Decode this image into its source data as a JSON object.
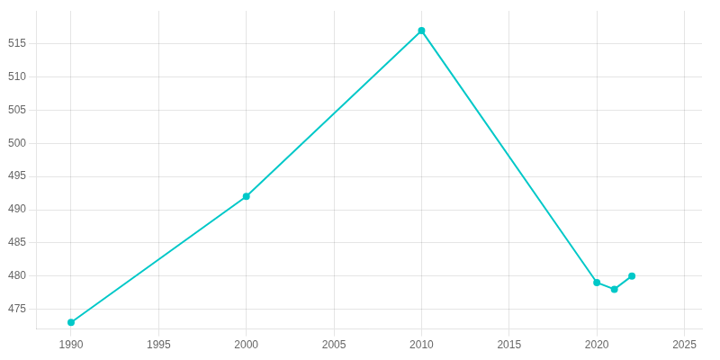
{
  "chart_data": {
    "type": "line",
    "x": [
      1990,
      2000,
      2010,
      2020,
      2021,
      2022
    ],
    "values": [
      473,
      492,
      517,
      479,
      478,
      480
    ],
    "color": "#00c8c8",
    "marker": "circle",
    "xlim": [
      1988,
      2026
    ],
    "ylim": [
      472,
      520
    ],
    "xticks": [
      1990,
      1995,
      2000,
      2005,
      2010,
      2015,
      2020,
      2025
    ],
    "yticks": [
      475,
      480,
      485,
      490,
      495,
      500,
      505,
      510,
      515
    ],
    "grid": true
  }
}
